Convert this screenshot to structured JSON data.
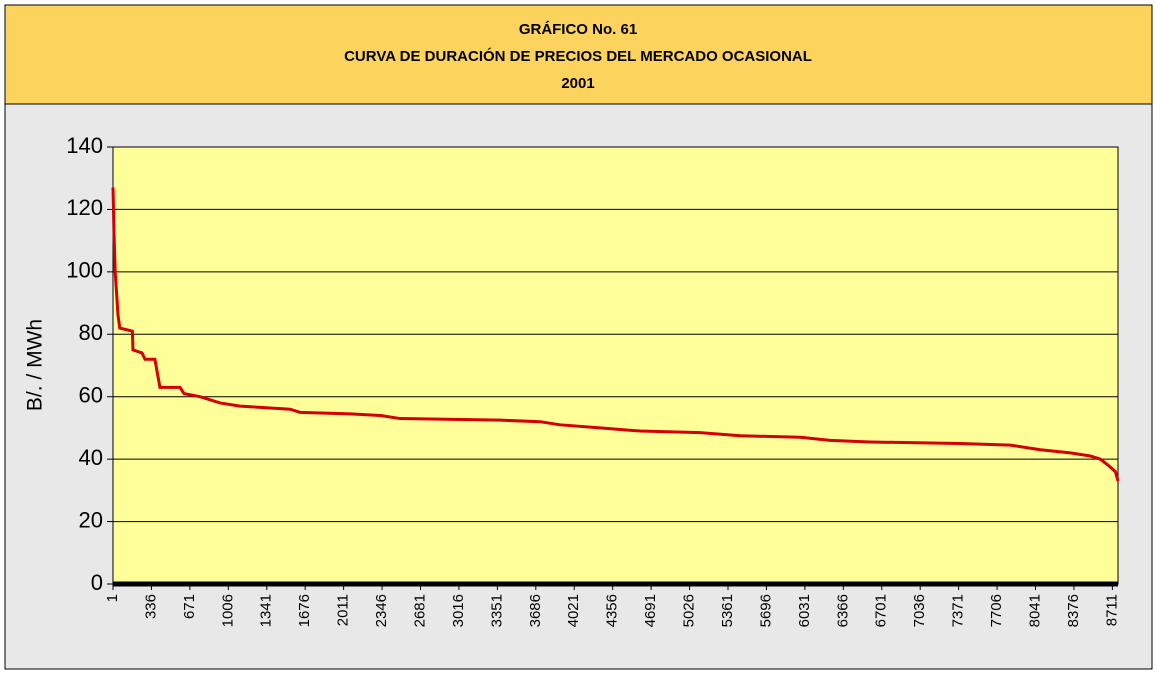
{
  "chart_data": {
    "type": "line",
    "title": [
      "GRÁFICO No. 61",
      "CURVA DE DURACIÓN DE PRECIOS DEL MERCADO OCASIONAL",
      "2001"
    ],
    "y_label": "B/.  /  MWh",
    "xlim": [
      1,
      8760
    ],
    "xticks": [
      1,
      336,
      671,
      1006,
      1341,
      1676,
      2011,
      2346,
      2681,
      3016,
      3351,
      3686,
      4021,
      4356,
      4691,
      5026,
      5361,
      5696,
      6031,
      6366,
      6701,
      7036,
      7371,
      7706,
      8041,
      8376,
      8711
    ],
    "ylim": [
      0,
      140
    ],
    "yticks": [
      0,
      20,
      40,
      60,
      80,
      100,
      120,
      140
    ],
    "grid": true,
    "series": [
      {
        "color": "#d40000",
        "x": [
          1,
          10,
          20,
          45,
          60,
          170,
          175,
          254,
          280,
          366,
          410,
          585,
          620,
          760,
          934,
          1108,
          1545,
          1631,
          2068,
          2329,
          2503,
          3375,
          3723,
          3898,
          4247,
          4596,
          5119,
          5467,
          5990,
          6252,
          6600,
          7385,
          7821,
          8083,
          8344,
          8519,
          8606,
          8676,
          8737,
          8760
        ],
        "values": [
          127,
          112,
          100,
          86,
          82,
          81,
          75,
          74,
          72,
          72,
          63,
          63,
          61,
          60,
          58,
          57,
          56,
          55,
          54.5,
          54,
          53,
          52.5,
          52,
          51,
          50,
          49,
          48.5,
          47.5,
          47,
          46,
          45.5,
          45,
          44.5,
          43,
          42,
          41,
          40,
          38,
          36,
          33
        ]
      }
    ]
  }
}
